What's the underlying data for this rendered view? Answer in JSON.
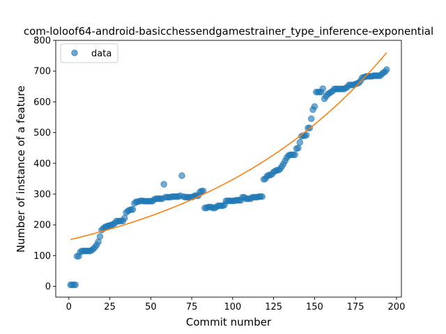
{
  "chart_data": {
    "type": "scatter",
    "title": "com-loloof64-android-basicchessendgamestrainer_type_inference-exponential",
    "xlabel": "Commit number",
    "ylabel": "Number of instance of a feature",
    "xlim": [
      -8,
      203
    ],
    "ylim": [
      -35,
      800
    ],
    "xticks": [
      0,
      25,
      50,
      75,
      100,
      125,
      150,
      175,
      200
    ],
    "yticks": [
      0,
      100,
      200,
      300,
      400,
      500,
      600,
      700,
      800
    ],
    "grid": false,
    "legend": {
      "placement": "top-left",
      "entries": [
        "data"
      ]
    },
    "colors": {
      "data": "#1f77b4",
      "fit": "#ff7f0e"
    },
    "series": [
      {
        "name": "data",
        "kind": "scatter",
        "x": [
          1,
          2,
          3,
          4,
          5,
          6,
          7,
          8,
          9,
          10,
          11,
          12,
          13,
          14,
          15,
          16,
          17,
          18,
          19,
          20,
          21,
          22,
          23,
          24,
          25,
          26,
          27,
          28,
          29,
          30,
          31,
          32,
          33,
          34,
          35,
          36,
          37,
          38,
          39,
          40,
          41,
          42,
          43,
          44,
          45,
          46,
          47,
          48,
          49,
          50,
          51,
          52,
          53,
          54,
          55,
          56,
          57,
          58,
          59,
          60,
          61,
          62,
          63,
          64,
          65,
          66,
          67,
          68,
          69,
          70,
          71,
          72,
          73,
          74,
          75,
          76,
          77,
          78,
          79,
          80,
          81,
          82,
          83,
          84,
          85,
          86,
          87,
          88,
          89,
          90,
          91,
          92,
          93,
          94,
          95,
          96,
          97,
          98,
          99,
          100,
          101,
          102,
          103,
          104,
          105,
          106,
          107,
          108,
          109,
          110,
          111,
          112,
          113,
          114,
          115,
          116,
          117,
          118,
          119,
          120,
          121,
          122,
          123,
          124,
          125,
          126,
          127,
          128,
          129,
          130,
          131,
          132,
          133,
          134,
          135,
          136,
          137,
          138,
          139,
          140,
          141,
          142,
          143,
          144,
          145,
          146,
          147,
          148,
          149,
          150,
          151,
          152,
          153,
          154,
          155,
          156,
          157,
          158,
          159,
          160,
          161,
          162,
          163,
          164,
          165,
          166,
          167,
          168,
          169,
          170,
          171,
          172,
          173,
          174,
          175,
          176,
          177,
          178,
          179,
          180,
          181,
          182,
          183,
          184,
          185,
          186,
          187,
          188,
          189,
          190,
          191,
          192,
          193,
          194
        ],
        "y": [
          5,
          5,
          5,
          5,
          98,
          98,
          112,
          115,
          115,
          115,
          115,
          115,
          115,
          118,
          122,
          128,
          135,
          145,
          162,
          183,
          188,
          193,
          195,
          197,
          198,
          200,
          202,
          205,
          212,
          212,
          212,
          213,
          213,
          222,
          240,
          245,
          248,
          250,
          250,
          270,
          275,
          275,
          277,
          278,
          278,
          277,
          277,
          277,
          277,
          277,
          277,
          282,
          285,
          285,
          285,
          285,
          285,
          332,
          290,
          290,
          290,
          290,
          292,
          292,
          292,
          292,
          292,
          295,
          360,
          292,
          290,
          290,
          290,
          290,
          290,
          292,
          295,
          295,
          295,
          307,
          310,
          310,
          255,
          255,
          258,
          258,
          258,
          255,
          255,
          258,
          262,
          262,
          262,
          262,
          265,
          278,
          278,
          278,
          278,
          278,
          278,
          280,
          280,
          280,
          280,
          290,
          290,
          285,
          285,
          285,
          285,
          290,
          290,
          290,
          290,
          292,
          292,
          292,
          348,
          350,
          358,
          362,
          362,
          365,
          372,
          375,
          378,
          378,
          382,
          390,
          398,
          408,
          418,
          425,
          428,
          428,
          428,
          428,
          448,
          450,
          468,
          488,
          490,
          490,
          492,
          515,
          515,
          545,
          575,
          585,
          632,
          632,
          632,
          632,
          643,
          610,
          618,
          625,
          628,
          632,
          635,
          642,
          642,
          642,
          642,
          642,
          642,
          642,
          645,
          648,
          655,
          655,
          655,
          655,
          658,
          660,
          662,
          668,
          678,
          680,
          682,
          683,
          683,
          683,
          683,
          685,
          685,
          685,
          685,
          685,
          690,
          695,
          698,
          705
        ]
      },
      {
        "name": "",
        "kind": "line",
        "model": "exponential",
        "a": 151,
        "b": 0.00833
      }
    ]
  }
}
